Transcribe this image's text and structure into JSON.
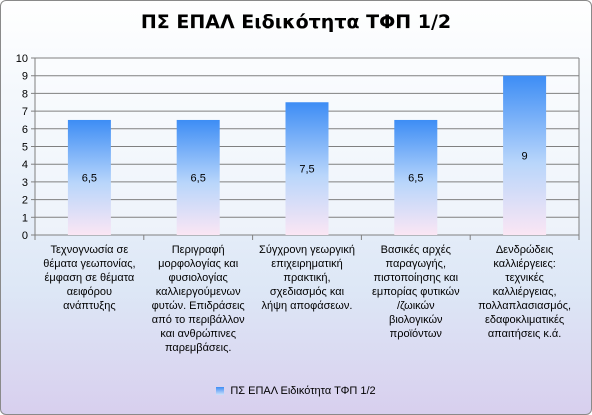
{
  "chart_data": {
    "type": "bar",
    "title": "ΠΣ ΕΠΑΛ Ειδικότητα ΤΦΠ 1/2",
    "categories": [
      "Τεχνογνωσία σε θέματα γεωπονίας, έμφαση σε θέματα αειφόρου ανάπτυξης",
      "Περιγραφή μορφολογίας και φυσιολογίας καλλιεργούμενων φυτών. Επιδράσεις από το περιβάλλον και ανθρώπινες παρεμβάσεις.",
      "Σύγχρονη γεωργική επιχειρηματική πρακτική, σχεδιασμός και λήψη αποφάσεων.",
      "Βασικές αρχές παραγωγής, πιστοποίησης και εμπορίας φυτικών /ζωικών βιολογικών προϊόντων",
      "Δενδρώδεις καλλιέργειες: τεχνικές καλλιέργειας, πολλαπλασιασμός, εδαφοκλιματικές απαιτήσεις κ.ά."
    ],
    "category_lines": [
      [
        "Τεχνογνωσία σε",
        "θέματα γεωπονίας,",
        "έμφαση σε θέματα",
        "αειφόρου",
        "ανάπτυξης"
      ],
      [
        "Περιγραφή",
        "μορφολογίας και",
        "φυσιολογίας",
        "καλλιεργούμενων",
        "φυτών. Επιδράσεις",
        "από το περιβάλλον",
        "και ανθρώπινες",
        "παρεμβάσεις."
      ],
      [
        "Σύγχρονη γεωργική",
        "επιχειρηματική",
        "πρακτική,",
        "σχεδιασμός και",
        "λήψη αποφάσεων."
      ],
      [
        "Βασικές αρχές",
        "παραγωγής,",
        "πιστοποίησης και",
        "εμπορίας φυτικών",
        "/ζωικών",
        "βιολογικών",
        "προϊόντων"
      ],
      [
        "Δενδρώδεις",
        "καλλιέργειες:",
        "τεχνικές",
        "καλλιέργειας,",
        "πολλαπλασιασμός,",
        "εδαφοκλιματικές",
        "απαιτήσεις κ.ά."
      ]
    ],
    "series": [
      {
        "name": "ΠΣ ΕΠΑΛ Ειδικότητα ΤΦΠ 1/2",
        "values": [
          6.5,
          6.5,
          7.5,
          6.5,
          9
        ]
      }
    ],
    "data_labels": [
      "6,5",
      "6,5",
      "7,5",
      "6,5",
      "9"
    ],
    "y_ticks": [
      "0",
      "1",
      "2",
      "3",
      "4",
      "5",
      "6",
      "7",
      "8",
      "9",
      "10"
    ],
    "ylim": [
      0,
      10
    ],
    "grid": true,
    "legend_position": "bottom",
    "colors": {
      "bar_top": "#3d8df5",
      "bar_bottom": "#fbe6f4",
      "grid": "#808080"
    }
  }
}
